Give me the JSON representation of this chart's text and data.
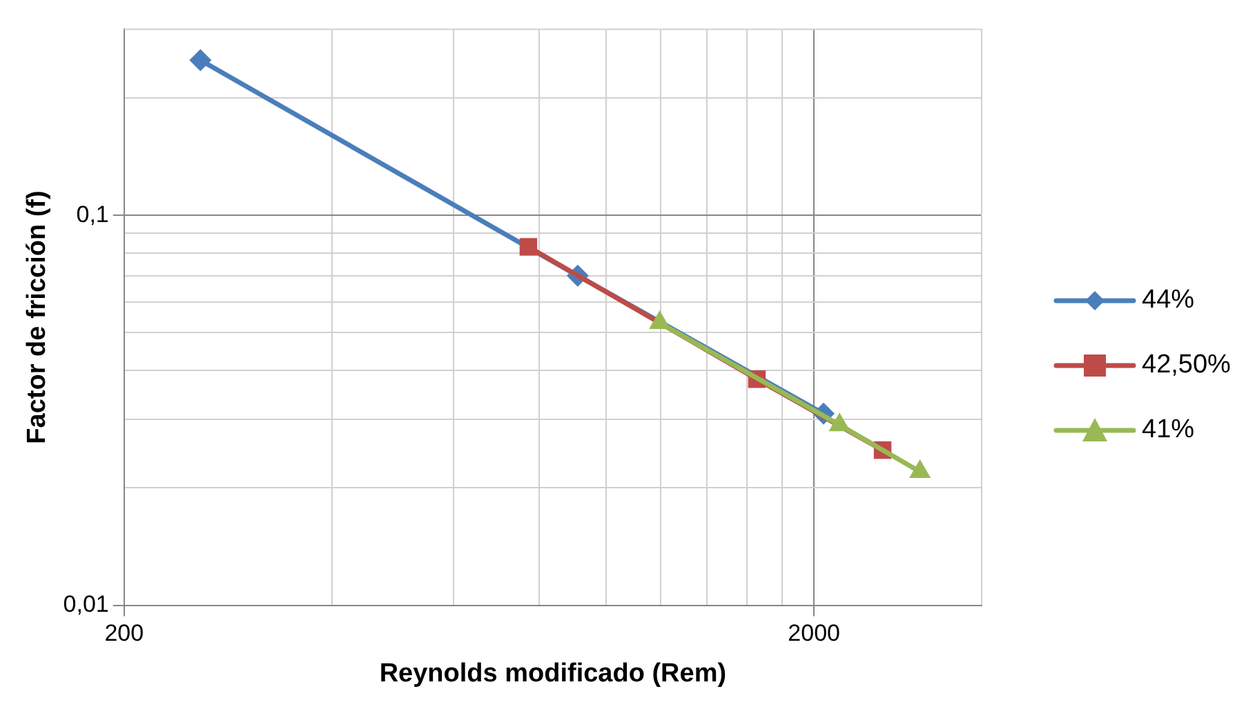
{
  "chart_data": {
    "type": "line",
    "xlabel": "Reynolds modificado (Rem)",
    "ylabel": "Factor de fricción (f)",
    "log": "xy",
    "grid": true,
    "legend": "right",
    "line_style": "solid",
    "xlim": [
      200,
      3500
    ],
    "xticks": [
      200,
      {
        "value": 400,
        "label": null
      },
      {
        "value": 600,
        "label": null
      },
      {
        "value": 800,
        "label": null
      },
      {
        "value": 1000,
        "label": null
      },
      {
        "value": 1200,
        "label": null
      },
      {
        "value": 1400,
        "label": null
      },
      {
        "value": 1600,
        "label": null
      },
      {
        "value": 1800,
        "label": null
      },
      2000
    ],
    "ylim": [
      0.01,
      0.3
    ],
    "yticks": [
      {
        "value": 0.01,
        "label": "0,01"
      },
      {
        "value": 0.02,
        "label": null
      },
      {
        "value": 0.03,
        "label": null
      },
      {
        "value": 0.04,
        "label": null
      },
      {
        "value": 0.05,
        "label": null
      },
      {
        "value": 0.06,
        "label": null
      },
      {
        "value": 0.07,
        "label": null
      },
      {
        "value": 0.08,
        "label": null
      },
      {
        "value": 0.09,
        "label": null
      },
      {
        "value": 0.1,
        "label": "0,1"
      },
      {
        "value": 0.2,
        "label": null
      }
    ],
    "series": [
      {
        "name": "44%",
        "color": "#4a7ebb",
        "marker": "diamond",
        "x": [
          258,
          909,
          2065
        ],
        "values": [
          0.25,
          0.07,
          0.031
        ]
      },
      {
        "name": "42,50%",
        "color": "#be4b48",
        "marker": "square",
        "x": [
          771,
          1653,
          2515
        ],
        "values": [
          0.083,
          0.038,
          0.025
        ]
      },
      {
        "name": "41%",
        "color": "#98b954",
        "marker": "triangle",
        "x": [
          1195,
          2178,
          2849
        ],
        "values": [
          0.053,
          0.029,
          0.022
        ]
      }
    ]
  }
}
